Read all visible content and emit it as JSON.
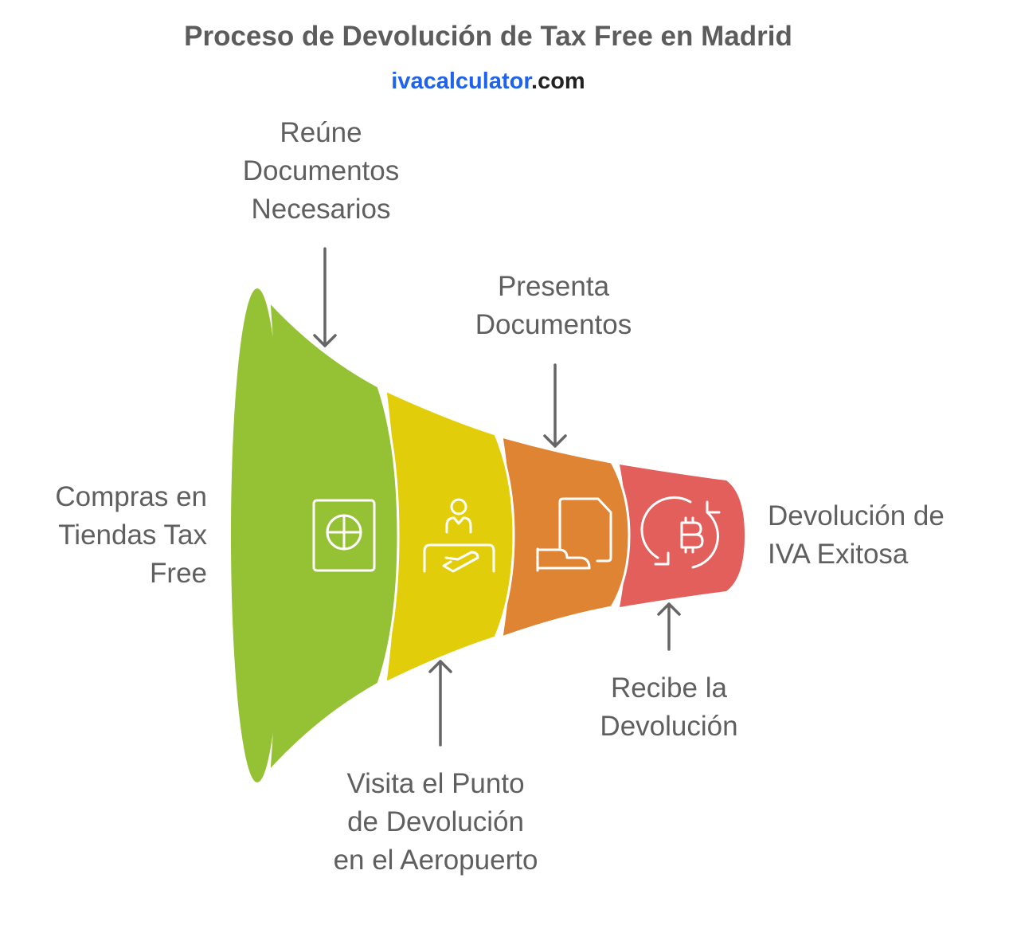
{
  "title": "Proceso de Devolución de Tax Free en Madrid",
  "brand": {
    "name": "ivacalculator",
    "tld": ".com"
  },
  "colors": {
    "green": "#95c134",
    "yellow": "#e2cd0b",
    "orange": "#de8433",
    "red": "#e35f5c",
    "text": "#5f5f5f",
    "brand": "#1f63ea"
  },
  "stages": [
    {
      "label": "Compras en Tiendas Tax Free",
      "icon": "safe-icon"
    },
    {
      "label": "Reúne Documentos Necesarios",
      "icon": "none"
    },
    {
      "label": "Visita el Punto de Devolución en el Aeropuerto",
      "icon": "reception-desk-icon"
    },
    {
      "label": "Presenta Documentos",
      "icon": "document-hand-icon"
    },
    {
      "label": "Recibe la Devolución",
      "icon": "bitcoin-refresh-icon"
    },
    {
      "label": "Devolución de IVA Exitosa",
      "icon": "none"
    }
  ]
}
